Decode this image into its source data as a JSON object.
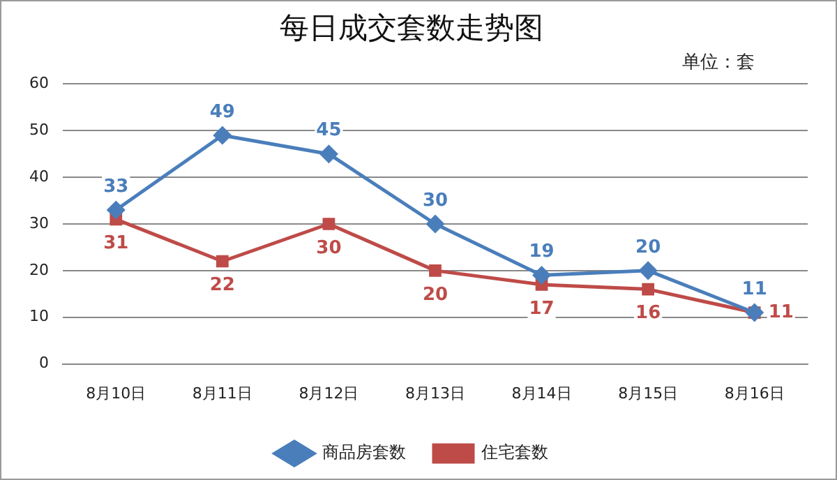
{
  "chart_data": {
    "type": "line",
    "title": "每日成交套数走势图",
    "annotations": [
      "单位：套"
    ],
    "categories": [
      "8月10日",
      "8月11日",
      "8月12日",
      "8月13日",
      "8月14日",
      "8月15日",
      "8月16日"
    ],
    "series": [
      {
        "name": "商品房套数",
        "color": "#4a7ebb",
        "marker": "diamond",
        "values": [
          33,
          49,
          45,
          30,
          19,
          20,
          11
        ]
      },
      {
        "name": "住宅套数",
        "color": "#be4b48",
        "marker": "square",
        "values": [
          31,
          22,
          30,
          20,
          17,
          16,
          11
        ]
      }
    ],
    "ylim": [
      0,
      60
    ],
    "yticks": [
      0,
      10,
      20,
      30,
      40,
      50,
      60
    ],
    "grid": "y",
    "legend": "bottom",
    "data_labels": true,
    "line_style": "solid"
  }
}
